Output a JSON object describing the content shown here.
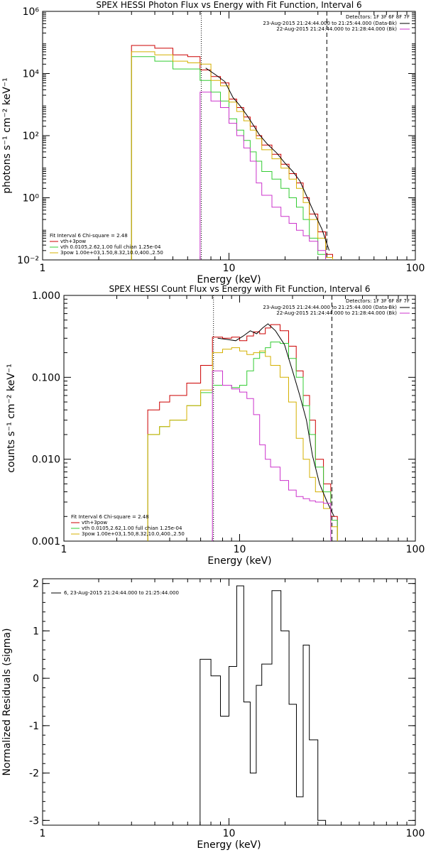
{
  "chart_data": [
    {
      "type": "line",
      "title": "SPEX HESSI Photon Flux vs Energy with Fit Function, Interval 6",
      "xlabel": "Energy (keV)",
      "ylabel": "photons s⁻¹ cm⁻² keV⁻¹",
      "xscale": "log",
      "yscale": "log",
      "xlim": [
        1,
        100
      ],
      "ylim": [
        0.01,
        1000000
      ],
      "xticks": [
        "1",
        "10",
        "100"
      ],
      "yticks": [
        "10⁻²",
        "10⁰",
        "10²",
        "10⁴",
        "10⁶"
      ],
      "detectors_label": "Detectors: 1F 3F 6F 8F 7F",
      "legend_top": [
        {
          "text": "23-Aug-2015 21:24:44.000 to 21:25:44.000 (Data-Bk)",
          "color": "#000000"
        },
        {
          "text": "22-Aug-2015 21:24:44.000 to 21:28:44.000 (Bk)",
          "color": "#cc33cc"
        }
      ],
      "legend_fit": [
        {
          "text": "Fit Interval 6   Chi-square = 2.48",
          "color": null
        },
        {
          "text": "vth+3pow",
          "color": "#cc0000"
        },
        {
          "text": "vth 0.0105,2.62,1.00  full chian 1.25e-04",
          "color": "#33cc33"
        },
        {
          "text": "3pow 1.00e+03,1.50,8.32,10.0,400.,2.50",
          "color": "#d4b000"
        }
      ],
      "vlines": [
        {
          "x": 7.1,
          "style": "dotted"
        },
        {
          "x": 33.5,
          "style": "dashed"
        }
      ],
      "edges": [
        3.0,
        4.0,
        5.0,
        6.0,
        7.0,
        8.0,
        9.0,
        10.0,
        11.0,
        12.0,
        13.0,
        14.0,
        15.0,
        17.0,
        19.0,
        21.0,
        23.0,
        25.0,
        27.0,
        30.0,
        33.0,
        36.0
      ],
      "series": [
        {
          "name": "vth+3pow",
          "color": "#cc0000",
          "values": [
            80000,
            65000,
            40000,
            35000,
            13000,
            8000,
            5000,
            1500,
            800,
            400,
            200,
            100,
            50,
            25,
            12,
            6,
            3,
            1,
            0.3,
            0.08,
            0.015
          ]
        },
        {
          "name": "vth 0.0105,2.62,1.00  full chian 1.25e-04",
          "color": "#33cc33",
          "values": [
            35000,
            25000,
            14000,
            14000,
            6000,
            2500,
            1300,
            350,
            150,
            70,
            30,
            15,
            7,
            4,
            2,
            1,
            0.5,
            0.2,
            0.05,
            0.015,
            0.007
          ]
        },
        {
          "name": "3pow 1.00e+03,1.50,8.32,10.0,400.,2.50",
          "color": "#d4b000",
          "values": [
            50000,
            40000,
            25000,
            22000,
            20000,
            6000,
            4000,
            1200,
            600,
            300,
            150,
            80,
            35,
            18,
            9,
            4,
            2,
            0.7,
            0.2,
            0.05,
            0.012
          ]
        },
        {
          "name": "23-Aug-2015 21:24:44.000 to 21:25:44.000 (Data-Bk)",
          "color": "#000000",
          "x": [
            7.5,
            8.5,
            9.5,
            10.5,
            11.5,
            12.5,
            13.5,
            14.5,
            16,
            18,
            20,
            22,
            24,
            26,
            28.5,
            31.5,
            34.5
          ],
          "values": [
            15000,
            9000,
            5500,
            1700,
            900,
            450,
            220,
            110,
            55,
            28,
            13,
            7,
            3.5,
            1.2,
            0.35,
            0.1,
            0.02
          ]
        },
        {
          "name": "22-Aug-2015 21:24:44.000 to 21:28:44.000 (Bk)",
          "color": "#cc33cc",
          "edges": [
            7.0,
            8.0,
            9.0,
            10.0,
            11.0,
            12.0,
            13.0,
            14.0,
            15.0,
            17.0,
            19.0,
            21.0,
            23.0,
            25.0,
            27.0,
            30.0,
            33.0
          ],
          "values": [
            2500,
            1300,
            800,
            250,
            100,
            40,
            15,
            3,
            1.2,
            0.5,
            0.25,
            0.15,
            0.09,
            0.06,
            0.04,
            0.02
          ]
        }
      ]
    },
    {
      "type": "line",
      "title": "SPEX HESSI Count Flux vs Energy with Fit Function, Interval 6",
      "xlabel": "Energy (keV)",
      "ylabel": "counts s⁻¹ cm⁻² keV⁻¹",
      "xscale": "log",
      "yscale": "log",
      "xlim": [
        1,
        100
      ],
      "ylim": [
        0.001,
        1
      ],
      "xticks": [
        "1",
        "10",
        "100"
      ],
      "yticks": [
        "0.001",
        "0.010",
        "0.100",
        "1.000"
      ],
      "detectors_label": "Detectors: 1F 3F 6F 8F 7F",
      "legend_top": [
        {
          "text": "23-Aug-2015 21:24:44.000 to 21:25:44.000 (Data-Bk)",
          "color": "#000000"
        },
        {
          "text": "22-Aug-2015 21:24:44.000 to 21:28:44.000 (Bk)",
          "color": "#cc33cc"
        }
      ],
      "legend_fit": [
        {
          "text": "Fit Interval 6   Chi-square = 2.48",
          "color": null
        },
        {
          "text": "vth+3pow",
          "color": "#cc0000"
        },
        {
          "text": "vth 0.0105,2.62,1.00  full chian 1.25e-04",
          "color": "#33cc33"
        },
        {
          "text": "3pow 1.00e+03,1.50,8.32,10.0,400.,2.50",
          "color": "#d4b000"
        }
      ],
      "vlines": [
        {
          "x": 7.1,
          "style": "dotted"
        },
        {
          "x": 33.5,
          "style": "dashed"
        }
      ],
      "edges": [
        3.0,
        3.5,
        4.0,
        5.0,
        6.0,
        7.0,
        8.0,
        9.0,
        10.0,
        11.0,
        12.0,
        13.0,
        14.0,
        15.0,
        17.0,
        19.0,
        21.0,
        23.0,
        25.0,
        27.0,
        30.0,
        33.0,
        36.0
      ],
      "series": [
        {
          "name": "vth+3pow",
          "color": "#cc0000",
          "values": [
            0.04,
            0.05,
            0.06,
            0.085,
            0.14,
            0.31,
            0.3,
            0.31,
            0.28,
            0.32,
            0.36,
            0.34,
            0.4,
            0.44,
            0.37,
            0.24,
            0.12,
            0.06,
            0.03,
            0.01,
            0.005,
            0.002
          ]
        },
        {
          "name": "vth 0.0105,2.62,1.00  full chian 1.25e-04",
          "color": "#33cc33",
          "values": [
            0.02,
            0.025,
            0.03,
            0.045,
            0.065,
            0.08,
            0.08,
            0.075,
            0.08,
            0.12,
            0.17,
            0.2,
            0.23,
            0.27,
            0.26,
            0.17,
            0.1,
            0.045,
            0.02,
            0.008,
            0.004,
            0.0018
          ]
        },
        {
          "name": "3pow 1.00e+03,1.50,8.32,10.0,400.,2.50",
          "color": "#d4b000",
          "values": [
            0.02,
            0.025,
            0.03,
            0.045,
            0.07,
            0.2,
            0.22,
            0.23,
            0.21,
            0.19,
            0.2,
            0.21,
            0.18,
            0.14,
            0.1,
            0.05,
            0.018,
            0.01,
            0.006,
            0.004,
            0.0025,
            0.0015
          ]
        },
        {
          "name": "23-Aug-2015 21:24:44.000 to 21:25:44.000 (Data-Bk)",
          "color": "#000000",
          "x": [
            7.5,
            8.5,
            9.5,
            10.5,
            11.5,
            12.5,
            13.5,
            14.5,
            16,
            18,
            20,
            22,
            24,
            26,
            28.5,
            31.5,
            34.5
          ],
          "values": [
            0.3,
            0.29,
            0.28,
            0.32,
            0.37,
            0.34,
            0.4,
            0.45,
            0.37,
            0.25,
            0.12,
            0.06,
            0.03,
            0.011,
            0.005,
            0.003,
            0.002
          ]
        },
        {
          "name": "22-Aug-2015 21:24:44.000 to 21:28:44.000 (Bk)",
          "color": "#cc33cc",
          "edges": [
            7.0,
            8.0,
            9.0,
            10.0,
            11.0,
            12.0,
            13.0,
            14.0,
            15.0,
            17.0,
            19.0,
            21.0,
            23.0,
            25.0,
            27.0,
            30.0,
            33.0
          ],
          "values": [
            0.12,
            0.08,
            0.072,
            0.066,
            0.055,
            0.035,
            0.015,
            0.01,
            0.008,
            0.0055,
            0.0042,
            0.0035,
            0.0033,
            0.0031,
            0.003,
            0.0029
          ]
        }
      ]
    },
    {
      "type": "line",
      "title": "",
      "xlabel": "Energy (keV)",
      "ylabel": "Normalized Residuals (sigma)",
      "xscale": "log",
      "yscale": "linear",
      "xlim": [
        1,
        100
      ],
      "ylim": [
        -3.1,
        2.1
      ],
      "xticks": [
        "1",
        "10",
        "100"
      ],
      "yticks": [
        "-3",
        "-2",
        "-1",
        "0",
        "1",
        "2"
      ],
      "legend": [
        {
          "text": "6, 23-Aug-2015 21:24:44.000 to 21:25:44.000",
          "color": "#000000"
        }
      ],
      "series": [
        {
          "name": "6, 23-Aug-2015 21:24:44.000 to 21:25:44.000",
          "color": "#000000",
          "edges": [
            7.0,
            8.0,
            9.0,
            10.0,
            11.0,
            12.0,
            13.0,
            14.0,
            15.0,
            17.0,
            19.0,
            21.0,
            23.0,
            25.0,
            27.0,
            30.0,
            33.0
          ],
          "values": [
            0.4,
            0.05,
            -0.8,
            0.25,
            1.95,
            -0.5,
            -2.0,
            -0.15,
            0.3,
            1.85,
            1.0,
            -0.55,
            -2.5,
            0.7,
            -1.3,
            -3.0
          ]
        }
      ]
    }
  ]
}
